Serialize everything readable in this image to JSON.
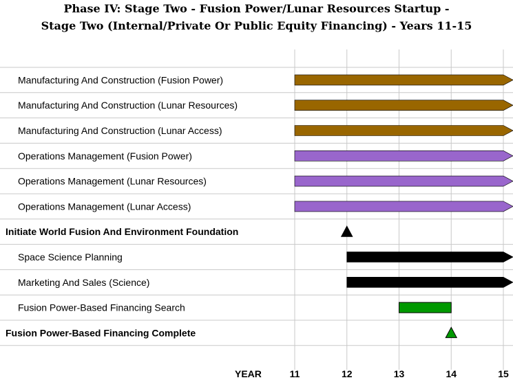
{
  "chart_data": {
    "type": "gantt",
    "title_line1": "Phase IV: Stage Two - Fusion Power/Lunar Resources Startup -",
    "title_line2": "Stage Two (Internal/Private Or Public Equity Financing) - Years 11-15",
    "xlabel": "YEAR",
    "xlim": [
      11,
      15
    ],
    "ticks": [
      "11",
      "12",
      "13",
      "14",
      "15"
    ],
    "grid": true,
    "rows": [
      {
        "label": "Manufacturing And Construction (Fusion Power)",
        "kind": "bar",
        "start": 11,
        "end": 15,
        "color": "#996600",
        "arrow": true
      },
      {
        "label": "Manufacturing And Construction (Lunar Resources)",
        "kind": "bar",
        "start": 11,
        "end": 15,
        "color": "#996600",
        "arrow": true
      },
      {
        "label": "Manufacturing And Construction (Lunar Access)",
        "kind": "bar",
        "start": 11,
        "end": 15,
        "color": "#996600",
        "arrow": true
      },
      {
        "label": "Operations Management (Fusion Power)",
        "kind": "bar",
        "start": 11,
        "end": 15,
        "color": "#9966cc",
        "arrow": true
      },
      {
        "label": "Operations Management (Lunar Resources)",
        "kind": "bar",
        "start": 11,
        "end": 15,
        "color": "#9966cc",
        "arrow": true
      },
      {
        "label": "Operations Management (Lunar Access)",
        "kind": "bar",
        "start": 11,
        "end": 15,
        "color": "#9966cc",
        "arrow": true
      },
      {
        "label": "Initiate World Fusion And Environment Foundation",
        "kind": "milestone",
        "at": 12,
        "color": "#000000"
      },
      {
        "label": "Space Science Planning",
        "kind": "bar",
        "start": 12,
        "end": 15,
        "color": "#000000",
        "arrow": true
      },
      {
        "label": "Marketing And Sales (Science)",
        "kind": "bar",
        "start": 12,
        "end": 15,
        "color": "#000000",
        "arrow": true
      },
      {
        "label": "Fusion Power-Based Financing Search",
        "kind": "bar",
        "start": 13,
        "end": 14,
        "color": "#009900",
        "arrow": false
      },
      {
        "label": "Fusion Power-Based Financing Complete",
        "kind": "milestone",
        "at": 14,
        "color": "#009900"
      }
    ]
  }
}
